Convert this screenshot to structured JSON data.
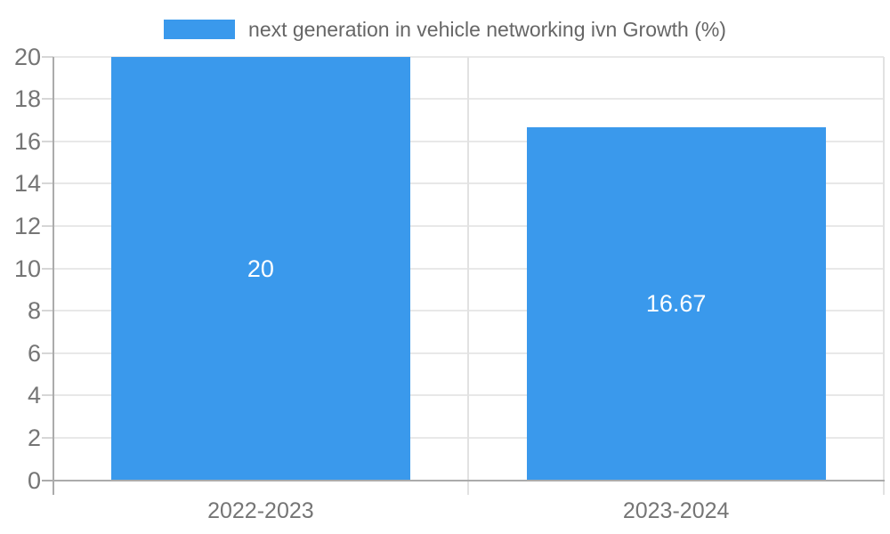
{
  "chart_data": {
    "type": "bar",
    "title": "",
    "legend": {
      "label": "next generation in vehicle networking ivn Growth (%)",
      "position": "top"
    },
    "categories": [
      "2022-2023",
      "2023-2024"
    ],
    "series": [
      {
        "name": "next generation in vehicle networking ivn Growth (%)",
        "values": [
          20,
          16.67
        ]
      }
    ],
    "data_labels": [
      "20",
      "16.67"
    ],
    "xlabel": "",
    "ylabel": "",
    "ylim": [
      0,
      20
    ],
    "yticks": [
      0,
      2,
      4,
      6,
      8,
      10,
      12,
      14,
      16,
      18,
      20
    ],
    "grid": true,
    "colors": {
      "bar": "#3A99EC",
      "axis_line": "#ABABAB",
      "gridline": "#E8E8E8",
      "category_divider": "#E2E2E2",
      "tick_mark": "#D6D6D6",
      "tick_text": "#757575",
      "legend_text": "#666666",
      "bar_label_text": "#FFFFFF",
      "background": "#FFFFFF"
    }
  }
}
